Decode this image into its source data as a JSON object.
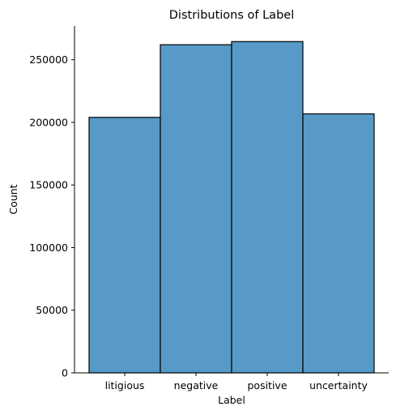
{
  "chart_data": {
    "type": "bar",
    "title": "Distributions of Label",
    "xlabel": "Label",
    "ylabel": "Count",
    "categories": [
      "litigious",
      "negative",
      "positive",
      "uncertainty"
    ],
    "values": [
      204000,
      262000,
      264500,
      206800
    ],
    "ylim": [
      0,
      277000
    ],
    "yticks": [
      0,
      50000,
      100000,
      150000,
      200000,
      250000
    ],
    "ytick_labels": [
      "0",
      "50000",
      "100000",
      "150000",
      "200000",
      "250000"
    ],
    "bar_color": "#5799c7",
    "edge_color": "#000000",
    "grid": false
  }
}
